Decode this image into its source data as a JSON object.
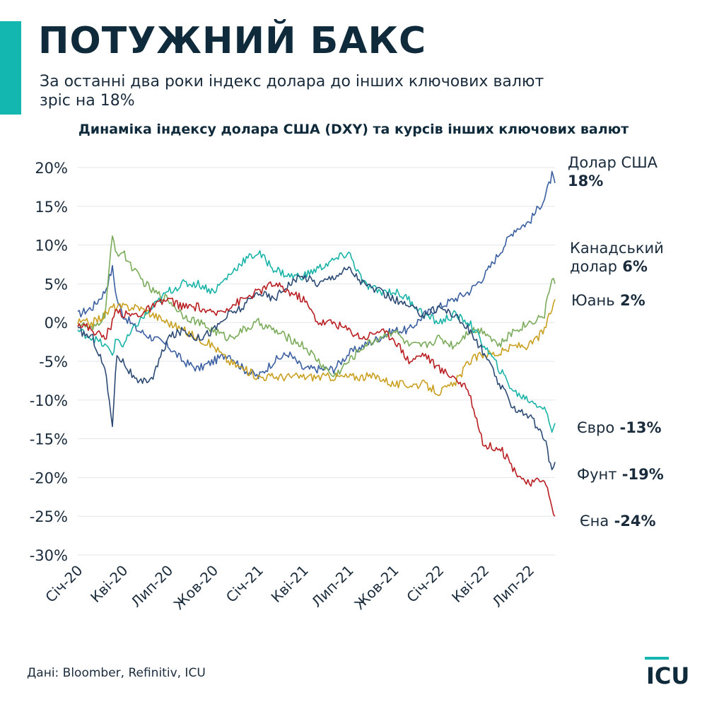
{
  "header": {
    "title": "ПОТУЖНИЙ БАКС",
    "subtitle": "За останні два роки індекс долара до інших ключових валют зріс на 18%"
  },
  "footer": {
    "source": "Дані: Bloomber, Refinitiv, ICU",
    "logo_text": "ICU"
  },
  "colors": {
    "accent": "#13b7b0",
    "title": "#0f2a3a"
  },
  "chart_data": {
    "type": "line",
    "title": "Динаміка індексу долара США (DXY) та курсів інших ключових валют",
    "xlabel": "",
    "ylabel": "",
    "ylim": [
      -30,
      20
    ],
    "yticks": [
      "20%",
      "15%",
      "10%",
      "5%",
      "0%",
      "-5%",
      "-10%",
      "-15%",
      "-20%",
      "-25%",
      "-30%"
    ],
    "xticks": [
      "Січ-20",
      "Кві-20",
      "Лип-20",
      "Жов-20",
      "Січ-21",
      "Кві-21",
      "Лип-21",
      "Жов-21",
      "Січ-22",
      "Кві-22",
      "Лип-22"
    ],
    "x_unit": "months since Jan 2020",
    "grid": true,
    "series": [
      {
        "name": "Долар США",
        "value_label": "18%",
        "color": "#3b5fa0",
        "points": [
          [
            0,
            1
          ],
          [
            1,
            2
          ],
          [
            1.8,
            4
          ],
          [
            2.3,
            7
          ],
          [
            2.6,
            3
          ],
          [
            3,
            1
          ],
          [
            4,
            -1
          ],
          [
            5,
            -2
          ],
          [
            6,
            -3
          ],
          [
            7,
            -5
          ],
          [
            8,
            -6
          ],
          [
            9,
            -5
          ],
          [
            10,
            -4
          ],
          [
            11,
            -6
          ],
          [
            12,
            -7
          ],
          [
            13,
            -5
          ],
          [
            14,
            -4
          ],
          [
            15,
            -6
          ],
          [
            16,
            -6
          ],
          [
            17,
            -6
          ],
          [
            18,
            -4
          ],
          [
            19,
            -3
          ],
          [
            20,
            -2
          ],
          [
            21,
            -1
          ],
          [
            22,
            -1
          ],
          [
            23,
            1
          ],
          [
            24,
            2
          ],
          [
            25,
            3
          ],
          [
            26,
            4
          ],
          [
            27,
            6
          ],
          [
            28,
            9
          ],
          [
            29,
            12
          ],
          [
            30,
            13
          ],
          [
            31,
            16
          ],
          [
            31.5,
            19
          ],
          [
            31.7,
            18
          ]
        ],
        "label_lines": [
          "Долар США"
        ],
        "label_value_line": 1
      },
      {
        "name": "Канадський долар",
        "value_label": "6%",
        "color": "#7aab5a",
        "points": [
          [
            0,
            0
          ],
          [
            1,
            -1
          ],
          [
            1.8,
            1
          ],
          [
            2.3,
            11
          ],
          [
            2.6,
            9
          ],
          [
            3,
            9
          ],
          [
            4,
            6
          ],
          [
            5,
            4
          ],
          [
            6,
            3
          ],
          [
            7,
            1
          ],
          [
            8,
            0
          ],
          [
            9,
            -1
          ],
          [
            10,
            -2
          ],
          [
            11,
            -1
          ],
          [
            12,
            0
          ],
          [
            13,
            -1
          ],
          [
            14,
            -2
          ],
          [
            15,
            -3
          ],
          [
            16,
            -5
          ],
          [
            17,
            -7
          ],
          [
            18,
            -5
          ],
          [
            19,
            -3
          ],
          [
            20,
            -2
          ],
          [
            21,
            -1
          ],
          [
            22,
            -3
          ],
          [
            23,
            -3
          ],
          [
            24,
            -2
          ],
          [
            25,
            -3
          ],
          [
            26,
            -1
          ],
          [
            27,
            -1
          ],
          [
            28,
            -3
          ],
          [
            29,
            -1
          ],
          [
            30,
            0
          ],
          [
            31,
            1
          ],
          [
            31.5,
            6
          ],
          [
            31.7,
            5
          ]
        ],
        "label_lines": [
          "Канадський",
          "долар"
        ]
      },
      {
        "name": "Юань",
        "value_label": "2%",
        "color": "#c9a020",
        "points": [
          [
            0,
            0
          ],
          [
            1,
            0
          ],
          [
            1.8,
            1
          ],
          [
            2.3,
            2
          ],
          [
            2.6,
            2
          ],
          [
            3,
            2
          ],
          [
            4,
            2
          ],
          [
            5,
            1
          ],
          [
            6,
            0
          ],
          [
            7,
            -1
          ],
          [
            8,
            -2
          ],
          [
            9,
            -3
          ],
          [
            10,
            -5
          ],
          [
            11,
            -6
          ],
          [
            12,
            -7
          ],
          [
            13,
            -7
          ],
          [
            14,
            -7
          ],
          [
            15,
            -7
          ],
          [
            16,
            -7
          ],
          [
            17,
            -7
          ],
          [
            18,
            -7
          ],
          [
            19,
            -7
          ],
          [
            20,
            -7
          ],
          [
            21,
            -8
          ],
          [
            22,
            -8
          ],
          [
            23,
            -8
          ],
          [
            24,
            -9
          ],
          [
            25,
            -8
          ],
          [
            26,
            -5
          ],
          [
            27,
            -4
          ],
          [
            28,
            -4
          ],
          [
            29,
            -3
          ],
          [
            30,
            -3
          ],
          [
            31,
            -1
          ],
          [
            31.7,
            3
          ]
        ],
        "label_lines": [
          "Юань"
        ]
      },
      {
        "name": "Євро",
        "value_label": "-13%",
        "color": "#1ab3a8",
        "points": [
          [
            0,
            -1
          ],
          [
            1,
            -2
          ],
          [
            1.8,
            -3
          ],
          [
            2.3,
            -4
          ],
          [
            2.6,
            -2
          ],
          [
            3,
            -3
          ],
          [
            4,
            0
          ],
          [
            5,
            2
          ],
          [
            6,
            4
          ],
          [
            7,
            5
          ],
          [
            8,
            5
          ],
          [
            9,
            4
          ],
          [
            10,
            6
          ],
          [
            11,
            8
          ],
          [
            12,
            9
          ],
          [
            13,
            7
          ],
          [
            14,
            6
          ],
          [
            15,
            6
          ],
          [
            16,
            7
          ],
          [
            17,
            8
          ],
          [
            18,
            9
          ],
          [
            19,
            5
          ],
          [
            20,
            4
          ],
          [
            21,
            4
          ],
          [
            22,
            3
          ],
          [
            23,
            1
          ],
          [
            24,
            0
          ],
          [
            25,
            1
          ],
          [
            26,
            0
          ],
          [
            27,
            -3
          ],
          [
            28,
            -6
          ],
          [
            29,
            -9
          ],
          [
            30,
            -10
          ],
          [
            31,
            -11
          ],
          [
            31.5,
            -14
          ],
          [
            31.7,
            -13
          ]
        ],
        "label_lines": [
          "Євро"
        ]
      },
      {
        "name": "Фунт",
        "value_label": "-19%",
        "color": "#2c4a73",
        "points": [
          [
            0,
            -1
          ],
          [
            1,
            -2
          ],
          [
            1.8,
            -6
          ],
          [
            2.3,
            -13
          ],
          [
            2.6,
            -4
          ],
          [
            3,
            -5
          ],
          [
            4,
            -8
          ],
          [
            5,
            -7
          ],
          [
            6,
            -2
          ],
          [
            7,
            -1
          ],
          [
            8,
            -2
          ],
          [
            9,
            -1
          ],
          [
            10,
            1
          ],
          [
            11,
            2
          ],
          [
            12,
            4
          ],
          [
            13,
            3
          ],
          [
            14,
            5
          ],
          [
            15,
            6
          ],
          [
            16,
            5
          ],
          [
            17,
            6
          ],
          [
            18,
            7
          ],
          [
            19,
            5
          ],
          [
            20,
            4
          ],
          [
            21,
            3
          ],
          [
            22,
            2
          ],
          [
            23,
            1
          ],
          [
            24,
            2
          ],
          [
            25,
            1
          ],
          [
            26,
            -1
          ],
          [
            27,
            -4
          ],
          [
            28,
            -8
          ],
          [
            29,
            -11
          ],
          [
            30,
            -12
          ],
          [
            31,
            -15
          ],
          [
            31.5,
            -19
          ],
          [
            31.7,
            -18
          ]
        ],
        "label_lines": [
          "Фунт"
        ]
      },
      {
        "name": "Єна",
        "value_label": "-24%",
        "color": "#b81e22",
        "points": [
          [
            0,
            0
          ],
          [
            1,
            -1
          ],
          [
            1.8,
            -2
          ],
          [
            2.3,
            0
          ],
          [
            2.6,
            2
          ],
          [
            3,
            1
          ],
          [
            4,
            1
          ],
          [
            5,
            2
          ],
          [
            6,
            3
          ],
          [
            7,
            2
          ],
          [
            8,
            2
          ],
          [
            9,
            1
          ],
          [
            10,
            2
          ],
          [
            11,
            3
          ],
          [
            12,
            4
          ],
          [
            13,
            5
          ],
          [
            14,
            4
          ],
          [
            15,
            3
          ],
          [
            16,
            0
          ],
          [
            17,
            0
          ],
          [
            18,
            -1
          ],
          [
            19,
            -2
          ],
          [
            20,
            -1
          ],
          [
            21,
            -2
          ],
          [
            22,
            -5
          ],
          [
            23,
            -4
          ],
          [
            24,
            -6
          ],
          [
            25,
            -7
          ],
          [
            26,
            -9
          ],
          [
            27,
            -16
          ],
          [
            28,
            -16
          ],
          [
            29,
            -19
          ],
          [
            30,
            -21
          ],
          [
            31,
            -20
          ],
          [
            31.5,
            -24
          ],
          [
            31.7,
            -25
          ]
        ],
        "label_lines": [
          "Єна"
        ]
      }
    ]
  }
}
